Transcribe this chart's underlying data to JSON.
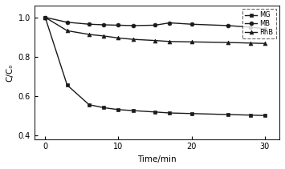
{
  "title": "",
  "xlabel": "Time/min",
  "ylabel": "C/C₀",
  "xlim": [
    -1.5,
    32
  ],
  "ylim": [
    0.38,
    1.06
  ],
  "yticks": [
    0.4,
    0.6,
    0.8,
    1.0
  ],
  "xticks": [
    0,
    10,
    20,
    30
  ],
  "MG": {
    "x": [
      0,
      3,
      6,
      8,
      10,
      12,
      15,
      17,
      20,
      25,
      28,
      30
    ],
    "y": [
      1.0,
      0.655,
      0.555,
      0.54,
      0.53,
      0.525,
      0.518,
      0.513,
      0.51,
      0.505,
      0.502,
      0.5
    ],
    "marker": "s",
    "color": "#1a1a1a",
    "label": "MG",
    "linewidth": 1.0,
    "markersize": 3.5
  },
  "MB": {
    "x": [
      0,
      3,
      6,
      8,
      10,
      12,
      15,
      17,
      20,
      25,
      28,
      30
    ],
    "y": [
      1.0,
      0.975,
      0.965,
      0.962,
      0.96,
      0.958,
      0.96,
      0.972,
      0.965,
      0.958,
      0.95,
      0.942
    ],
    "marker": "o",
    "color": "#1a1a1a",
    "label": "MB",
    "linewidth": 1.0,
    "markersize": 3.5
  },
  "RhB": {
    "x": [
      0,
      3,
      6,
      8,
      10,
      12,
      15,
      17,
      20,
      25,
      28,
      30
    ],
    "y": [
      1.0,
      0.932,
      0.913,
      0.905,
      0.895,
      0.888,
      0.882,
      0.877,
      0.875,
      0.872,
      0.869,
      0.867
    ],
    "marker": "^",
    "color": "#1a1a1a",
    "label": "RhB",
    "linewidth": 1.0,
    "markersize": 3.5
  },
  "legend_loc": "upper right",
  "background_color": "#ffffff",
  "fig_width": 3.55,
  "fig_height": 2.11,
  "dpi": 100
}
